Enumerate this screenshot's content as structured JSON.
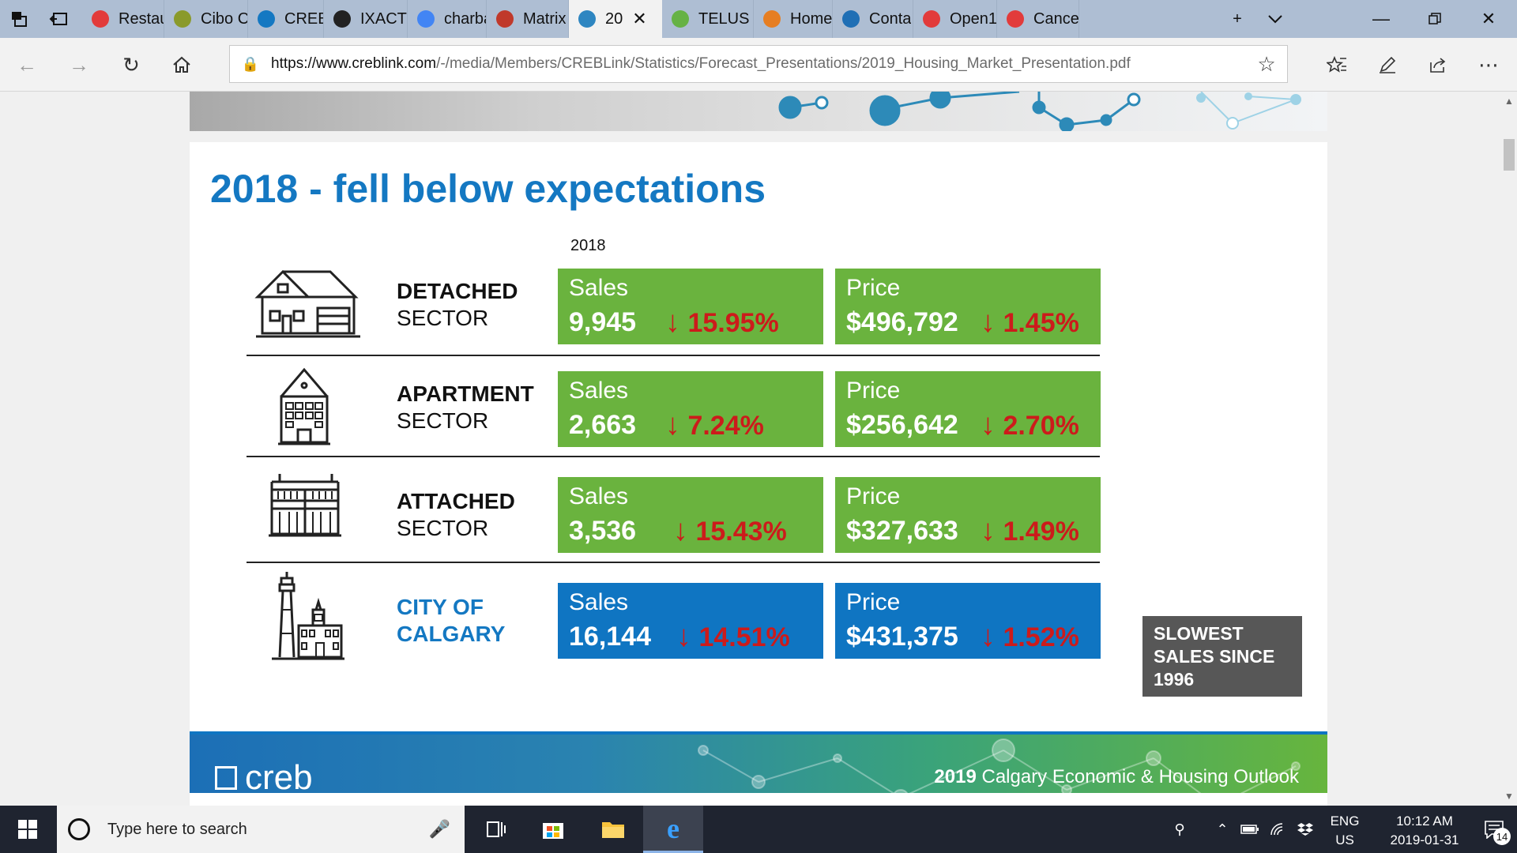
{
  "browser": {
    "tabs": [
      {
        "title": "Restau",
        "favicon_color": "#e23b3b"
      },
      {
        "title": "Cibo C",
        "favicon_color": "#8a9a2b"
      },
      {
        "title": "CREB®",
        "favicon_color": "#1478c2"
      },
      {
        "title": "IXACT",
        "favicon_color": "#222222"
      },
      {
        "title": "charba",
        "favicon_color": "#4285f4"
      },
      {
        "title": "Matrix",
        "favicon_color": "#c0392b"
      },
      {
        "title": "20",
        "favicon_color": "#2e86c1"
      },
      {
        "title": "TELUS",
        "favicon_color": "#66b245"
      },
      {
        "title": "Home",
        "favicon_color": "#e67e22"
      },
      {
        "title": "Conta",
        "favicon_color": "#1f6fb5"
      },
      {
        "title": "Open1",
        "favicon_color": "#e23b3b"
      },
      {
        "title": "Cance",
        "favicon_color": "#e23b3b"
      }
    ],
    "active_tab_index": 6,
    "url_host": "https://www.creblink.com",
    "url_path": "/-/media/Members/CREBLink/Statistics/Forecast_Presentations/2019_Housing_Market_Presentation.pdf"
  },
  "slide": {
    "title": "2018 -  fell below expectations",
    "year_label": "2018",
    "rows": [
      {
        "name_bold": "DETACHED",
        "name_rest": "SECTOR",
        "sales_label": "Sales",
        "sales_value": "9,945",
        "sales_change": "15.95%",
        "price_label": "Price",
        "price_value": "$496,792",
        "price_change": "1.45%"
      },
      {
        "name_bold": "APARTMENT",
        "name_rest": "SECTOR",
        "sales_label": "Sales",
        "sales_value": "2,663",
        "sales_change": "7.24%",
        "price_label": "Price",
        "price_value": "$256,642",
        "price_change": "2.70%"
      },
      {
        "name_bold": "ATTACHED",
        "name_rest": "SECTOR",
        "sales_label": "Sales",
        "sales_value": "3,536",
        "sales_change": "15.43%",
        "price_label": "Price",
        "price_value": "$327,633",
        "price_change": "1.49%"
      },
      {
        "name_bold": "CITY OF",
        "name_rest": "CALGARY",
        "sales_label": "Sales",
        "sales_value": "16,144",
        "sales_change": "14.51%",
        "price_label": "Price",
        "price_value": "$431,375",
        "price_change": "1.52%"
      }
    ],
    "callout": "SLOWEST SALES SINCE 1996",
    "down_arrow": "↓",
    "footer_logo": "creb",
    "footer_year": "2019",
    "footer_text": " Calgary Economic & Housing Outlook"
  },
  "taskbar": {
    "search_placeholder": "Type here to search",
    "lang_top": "ENG",
    "lang_bottom": "US",
    "time": "10:12 AM",
    "date": "2019-01-31",
    "notification_count": "14"
  }
}
